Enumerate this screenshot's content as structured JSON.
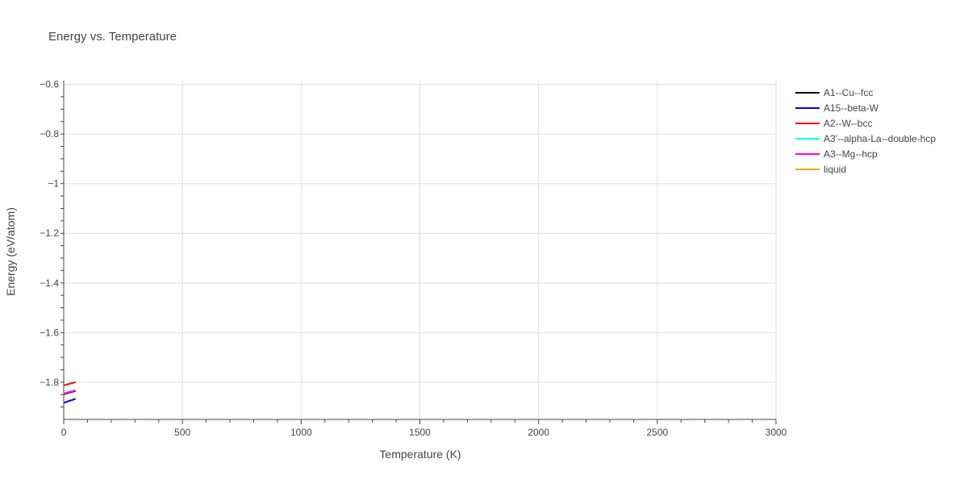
{
  "chart_data": {
    "type": "line",
    "title": "Energy vs. Temperature",
    "xlabel": "Temperature (K)",
    "ylabel": "Energy (eV/atom)",
    "xlim": [
      0,
      3000
    ],
    "ylim": [
      -1.95,
      -0.585
    ],
    "xticks": [
      0,
      500,
      1000,
      1500,
      2000,
      2500,
      3000
    ],
    "xtick_labels": [
      "0",
      "500",
      "1000",
      "1500",
      "2000",
      "2500",
      "3000"
    ],
    "yticks": [
      -0.6,
      -0.8,
      -1,
      -1.2,
      -1.4,
      -1.6,
      -1.8
    ],
    "ytick_labels": [
      "−0.6",
      "−0.8",
      "−1",
      "−1.2",
      "−1.4",
      "−1.6",
      "−1.8"
    ],
    "grid": true,
    "legend_position": "right",
    "series": [
      {
        "name": "A1--Cu--fcc",
        "color": "#000000",
        "x": [
          0,
          50
        ],
        "y": [
          -1.848,
          -1.835
        ]
      },
      {
        "name": "A15--beta-W",
        "color": "#0000ff",
        "x": [
          0,
          50
        ],
        "y": [
          -1.883,
          -1.867
        ]
      },
      {
        "name": "A2--W--bcc",
        "color": "#ff0000",
        "x": [
          0,
          50
        ],
        "y": [
          -1.813,
          -1.8
        ]
      },
      {
        "name": "A3'--alpha-La--double-hcp",
        "color": "#00ffff",
        "x": [
          0,
          50
        ],
        "y": [
          -1.845,
          -1.832
        ]
      },
      {
        "name": "A3--Mg--hcp",
        "color": "#ff00ff",
        "x": [
          0,
          50
        ],
        "y": [
          -1.846,
          -1.833
        ]
      },
      {
        "name": "liquid",
        "color": "#e6b000",
        "x": [],
        "y": []
      }
    ]
  }
}
